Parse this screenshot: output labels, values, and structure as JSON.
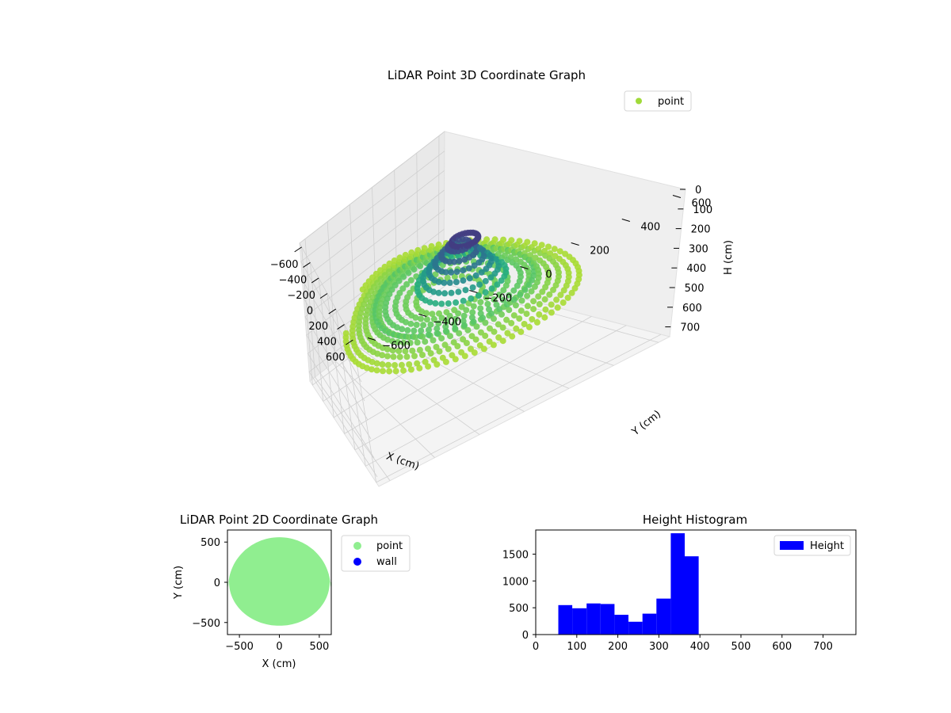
{
  "chart_data": [
    {
      "type": "scatter",
      "subtype": "3d-scatter",
      "title": "LiDAR Point 3D Coordinate Graph",
      "xlabel": "X (cm)",
      "ylabel": "Y (cm)",
      "zlabel": "H (cm)",
      "x_ticks": [
        -600,
        -400,
        -200,
        0,
        200,
        400,
        600
      ],
      "y_ticks": [
        -600,
        -400,
        -200,
        0,
        200,
        400,
        600
      ],
      "z_ticks": [
        0,
        100,
        200,
        300,
        400,
        500,
        600,
        700
      ],
      "xlim": [
        -650,
        650
      ],
      "ylim": [
        -650,
        650
      ],
      "zlim": [
        0,
        750
      ],
      "z_inverted": true,
      "colormap": "viridis",
      "grid": true,
      "legend": {
        "position": "top-right",
        "entries": [
          {
            "name": "point",
            "color": "#a0da39"
          }
        ]
      }
    },
    {
      "type": "scatter",
      "title": "LiDAR Point 2D Coordinate Graph",
      "xlabel": "X (cm)",
      "ylabel": "Y (cm)",
      "x_ticks": [
        -500,
        0,
        500
      ],
      "y_ticks": [
        -500,
        0,
        500
      ],
      "xlim": [
        -650,
        650
      ],
      "ylim": [
        -650,
        650
      ],
      "grid": false,
      "legend": {
        "position": "outside-right",
        "entries": [
          {
            "name": "point",
            "color": "#90ee90"
          },
          {
            "name": "wall",
            "color": "#0000ff"
          }
        ]
      }
    },
    {
      "type": "bar",
      "subtype": "histogram",
      "title": "Height Histogram",
      "xlim": [
        0,
        780
      ],
      "ylim": [
        0,
        1950
      ],
      "x_ticks": [
        0,
        100,
        200,
        300,
        400,
        500,
        600,
        700
      ],
      "y_ticks": [
        0,
        500,
        1000,
        1500
      ],
      "bins": [
        {
          "start": 55,
          "end": 89,
          "count": 550
        },
        {
          "start": 89,
          "end": 124,
          "count": 490
        },
        {
          "start": 124,
          "end": 158,
          "count": 580
        },
        {
          "start": 158,
          "end": 192,
          "count": 570
        },
        {
          "start": 192,
          "end": 226,
          "count": 370
        },
        {
          "start": 226,
          "end": 260,
          "count": 240
        },
        {
          "start": 260,
          "end": 294,
          "count": 390
        },
        {
          "start": 294,
          "end": 329,
          "count": 670
        },
        {
          "start": 329,
          "end": 363,
          "count": 1890
        },
        {
          "start": 363,
          "end": 397,
          "count": 1460
        }
      ],
      "series": [
        {
          "name": "Height",
          "color": "#0000ff"
        }
      ],
      "legend": {
        "position": "top-right",
        "entries": [
          {
            "name": "Height",
            "color": "#0000ff"
          }
        ]
      }
    }
  ]
}
